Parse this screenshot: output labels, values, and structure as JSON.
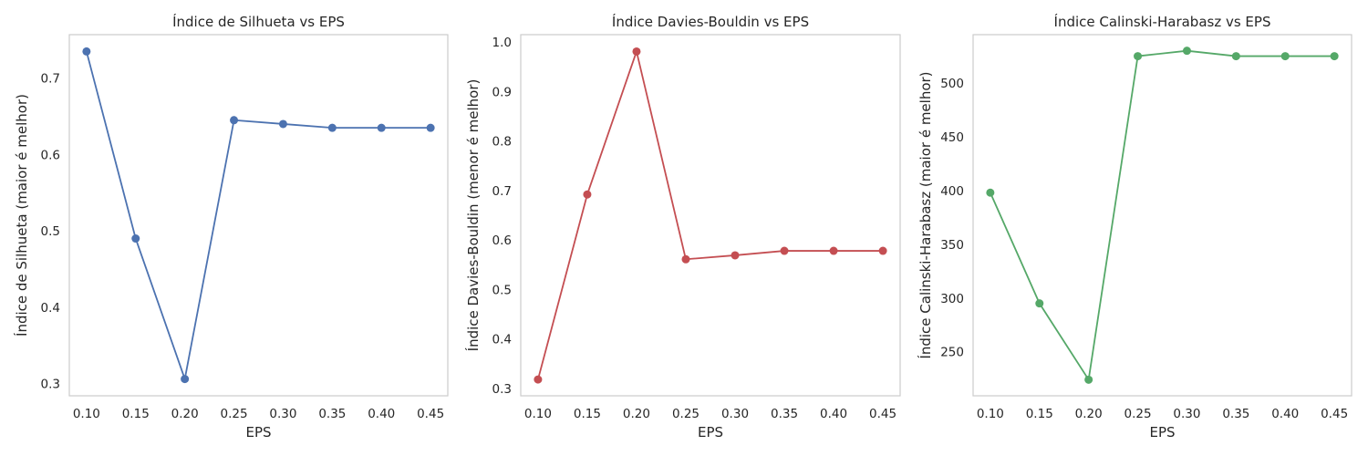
{
  "chart_data": [
    {
      "type": "line",
      "title": "Índice de Silhueta vs EPS",
      "xlabel": "EPS",
      "ylabel": "Índice de Silhueta (maior é melhor)",
      "x": [
        0.1,
        0.15,
        0.2,
        0.25,
        0.3,
        0.35,
        0.4,
        0.45
      ],
      "x_tick_labels": [
        "0.10",
        "0.15",
        "0.20",
        "0.25",
        "0.30",
        "0.35",
        "0.40",
        "0.45"
      ],
      "xlim": [
        0.0825,
        0.4675
      ],
      "ylim": [
        0.284,
        0.757
      ],
      "y_ticks": [
        0.3,
        0.4,
        0.5,
        0.6,
        0.7
      ],
      "y_tick_labels": [
        "0.3",
        "0.4",
        "0.5",
        "0.6",
        "0.7"
      ],
      "series": [
        {
          "color": "#4c72b0",
          "marker": "circle",
          "values": [
            0.735,
            0.49,
            0.306,
            0.645,
            0.64,
            0.635,
            0.635,
            0.635
          ]
        }
      ],
      "grid": false,
      "legend": "none"
    },
    {
      "type": "line",
      "title": "Índice Davies-Bouldin vs EPS",
      "xlabel": "EPS",
      "ylabel": "Índice Davies-Bouldin (menor é melhor)",
      "x": [
        0.1,
        0.15,
        0.2,
        0.25,
        0.3,
        0.35,
        0.4,
        0.45
      ],
      "x_tick_labels": [
        "0.10",
        "0.15",
        "0.20",
        "0.25",
        "0.30",
        "0.35",
        "0.40",
        "0.45"
      ],
      "xlim": [
        0.0825,
        0.4675
      ],
      "ylim": [
        0.285,
        1.015
      ],
      "y_ticks": [
        0.3,
        0.4,
        0.5,
        0.6,
        0.7,
        0.8,
        0.9,
        1.0
      ],
      "y_tick_labels": [
        "0.3",
        "0.4",
        "0.5",
        "0.6",
        "0.7",
        "0.8",
        "0.9",
        "1.0"
      ],
      "series": [
        {
          "color": "#c44e52",
          "marker": "circle",
          "values": [
            0.318,
            0.692,
            0.981,
            0.561,
            0.569,
            0.578,
            0.578,
            0.578
          ]
        }
      ],
      "grid": false,
      "legend": "none"
    },
    {
      "type": "line",
      "title": "Índice Calinski-Harabasz vs EPS",
      "xlabel": "EPS",
      "ylabel": "Índice Calinski-Harabasz (maior é melhor)",
      "x": [
        0.1,
        0.15,
        0.2,
        0.25,
        0.3,
        0.35,
        0.4,
        0.45
      ],
      "x_tick_labels": [
        "0.10",
        "0.15",
        "0.20",
        "0.25",
        "0.30",
        "0.35",
        "0.40",
        "0.45"
      ],
      "xlim": [
        0.0825,
        0.4675
      ],
      "ylim": [
        209,
        545
      ],
      "y_ticks": [
        250,
        300,
        350,
        400,
        450,
        500
      ],
      "y_tick_labels": [
        "250",
        "300",
        "350",
        "400",
        "450",
        "500"
      ],
      "series": [
        {
          "color": "#55a868",
          "marker": "circle",
          "values": [
            398,
            295,
            224,
            525,
            530,
            525,
            525,
            525
          ]
        }
      ],
      "grid": false,
      "legend": "none"
    }
  ]
}
